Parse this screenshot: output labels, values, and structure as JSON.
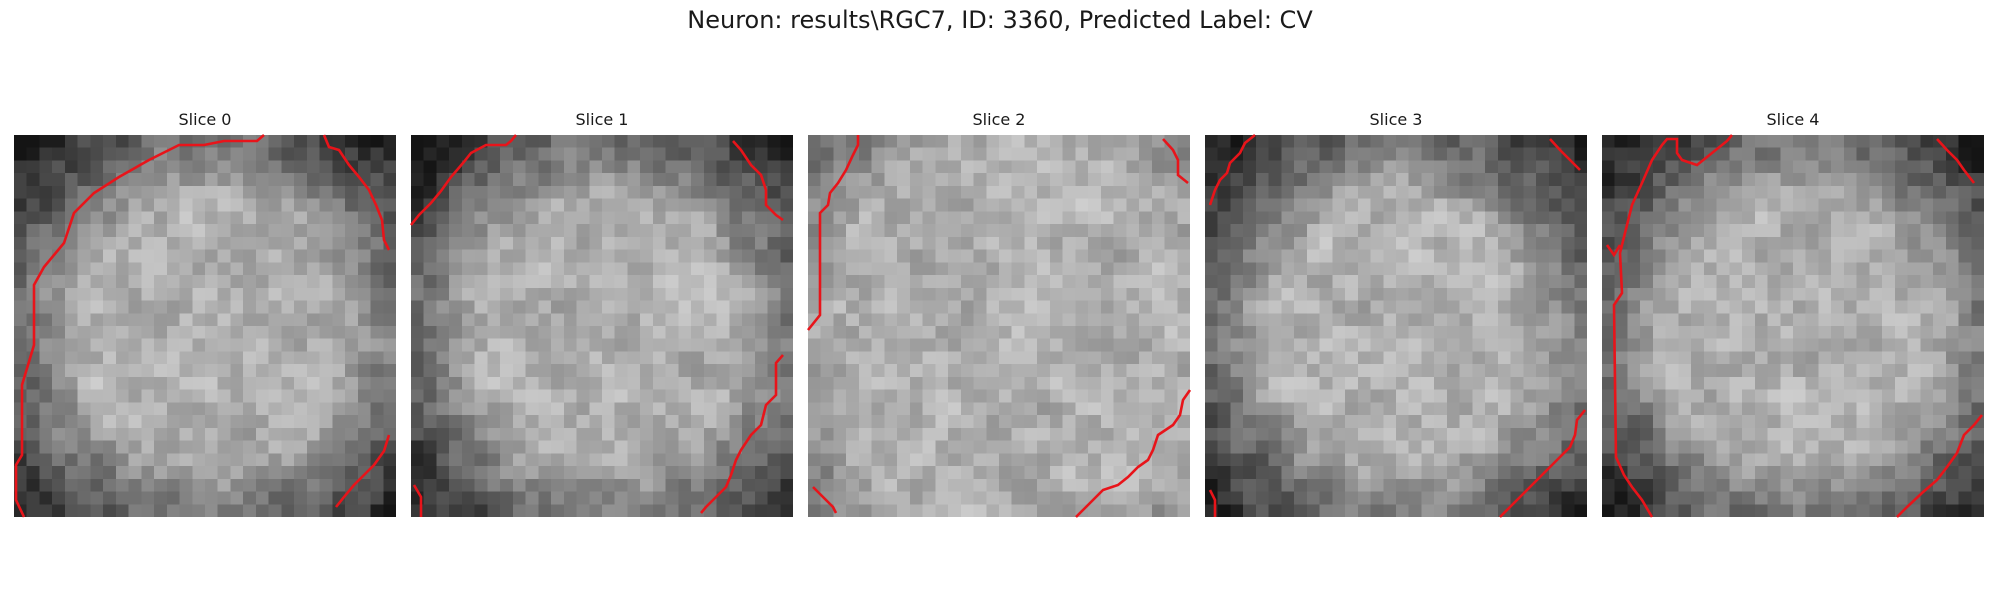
{
  "figure": {
    "title": "Neuron: results\\RGC7, ID: 3360, Predicted Label: CV"
  },
  "contour_color": "#e8141a",
  "panels": [
    {
      "title": "Slice 0"
    },
    {
      "title": "Slice 1"
    },
    {
      "title": "Slice 2"
    },
    {
      "title": "Slice 3"
    },
    {
      "title": "Slice 4"
    }
  ]
}
